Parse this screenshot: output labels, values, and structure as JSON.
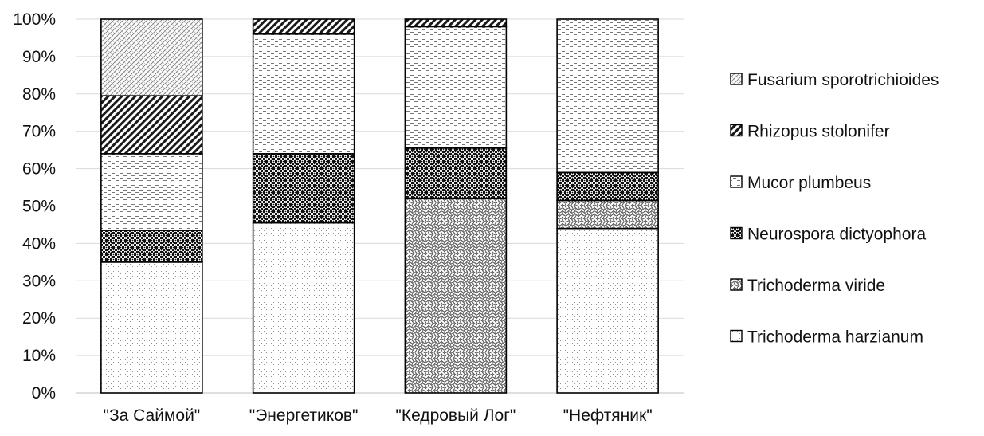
{
  "chart_data": {
    "type": "bar",
    "stacked": true,
    "percent": true,
    "categories": [
      "\"За Саймой\"",
      "\"Энергетиков\"",
      "\"Кедровый Лог\"",
      "\"Нефтяник\""
    ],
    "series": [
      {
        "name": "Trichoderma harzianum",
        "values": [
          35,
          45.5,
          0,
          44
        ],
        "pattern": "dots-sparse"
      },
      {
        "name": "Trichoderma viride",
        "values": [
          0,
          0,
          52,
          7.5
        ],
        "pattern": "weave"
      },
      {
        "name": "Neurospora dictyophora",
        "values": [
          8.5,
          18.5,
          13.5,
          7.5
        ],
        "pattern": "checker"
      },
      {
        "name": "Mucor plumbeus",
        "values": [
          20.5,
          32,
          32.5,
          41
        ],
        "pattern": "dashes"
      },
      {
        "name": "Rhizopus stolonifer",
        "values": [
          15.5,
          4,
          2,
          0
        ],
        "pattern": "wide-diagonal"
      },
      {
        "name": "Fusarium sporotrichioides",
        "values": [
          20.5,
          0,
          0,
          0
        ],
        "pattern": "diagonal-cross"
      }
    ],
    "y_ticks": [
      "0%",
      "10%",
      "20%",
      "30%",
      "40%",
      "50%",
      "60%",
      "70%",
      "80%",
      "90%",
      "100%"
    ],
    "ylim": [
      0,
      100
    ],
    "grid": true,
    "legend_position": "right",
    "legend_order": [
      "Fusarium sporotrichioides",
      "Rhizopus stolonifer",
      "Mucor plumbeus",
      "Neurospora dictyophora",
      "Trichoderma viride",
      "Trichoderma harzianum"
    ],
    "colors": {
      "bar_fill": "#ffffff",
      "bar_stroke": "#000000",
      "pattern_ink": "#444444",
      "grid": "#d9d9d9",
      "axis": "#bfbfbf"
    }
  }
}
